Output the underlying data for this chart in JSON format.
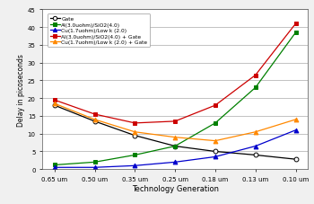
{
  "x_labels": [
    "0.65 um",
    "0.50 um",
    "0.35 um",
    "0.25 um",
    "0.18 um",
    "0.13 um",
    "0.10 um"
  ],
  "x_values": [
    0,
    1,
    2,
    3,
    4,
    5,
    6
  ],
  "series": [
    {
      "label": "Gate",
      "color": "#000000",
      "marker": "o",
      "marker_face": "white",
      "linestyle": "-",
      "values": [
        18.0,
        13.5,
        9.5,
        6.5,
        5.0,
        4.0,
        2.8
      ]
    },
    {
      "label": "Al(3.0uohm)/SiO2(4.0)",
      "color": "#008000",
      "marker": "s",
      "marker_face": "#008000",
      "linestyle": "-",
      "values": [
        1.2,
        2.0,
        4.0,
        6.5,
        13.0,
        23.0,
        38.5
      ]
    },
    {
      "label": "Cu(1.7uohm)/Low k (2.0)",
      "color": "#0000cc",
      "marker": "^",
      "marker_face": "#0000cc",
      "linestyle": "-",
      "values": [
        0.5,
        0.5,
        1.0,
        2.0,
        3.5,
        6.5,
        11.0
      ]
    },
    {
      "label": "Al(3.0uohm)/SiO2(4.0) + Gate",
      "color": "#cc0000",
      "marker": "s",
      "marker_face": "#cc0000",
      "linestyle": "-",
      "values": [
        19.5,
        15.5,
        13.0,
        13.5,
        18.0,
        26.5,
        41.0
      ]
    },
    {
      "label": "Cu(1.7uohm)/Low k (2.0) + Gate",
      "color": "#ff8800",
      "marker": "^",
      "marker_face": "#ff8800",
      "linestyle": "-",
      "values": [
        18.5,
        14.0,
        10.5,
        9.0,
        8.0,
        10.5,
        14.0
      ]
    }
  ],
  "xlabel": "Technology Generation",
  "ylabel": "Delay in picoseconds",
  "ylim": [
    0,
    45
  ],
  "yticks": [
    0,
    5,
    10,
    15,
    20,
    25,
    30,
    35,
    40,
    45
  ],
  "background_color": "#f0f0f0",
  "grid_color": "#aaaaaa",
  "plot_bg": "#ffffff"
}
